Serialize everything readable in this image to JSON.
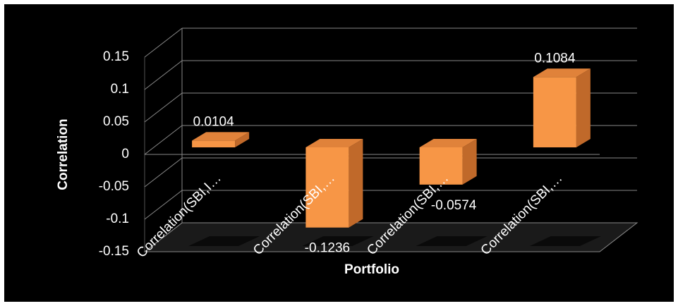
{
  "chart_data": {
    "type": "bar3d",
    "categories": [
      "Correlation(SBI,I…",
      "Correlation(SBI,…",
      "Correlation(SBI,…",
      "Correlation(SBI,…"
    ],
    "values": [
      0.0104,
      -0.1236,
      -0.0574,
      0.1084
    ],
    "color": "#f79646",
    "x_label": "Portfolio",
    "y_label": "Correlation",
    "ylim": [
      -0.15,
      0.15
    ],
    "yticks": [
      -0.15,
      -0.1,
      -0.05,
      0,
      0.05,
      0.1,
      0.15
    ],
    "grid": true
  }
}
